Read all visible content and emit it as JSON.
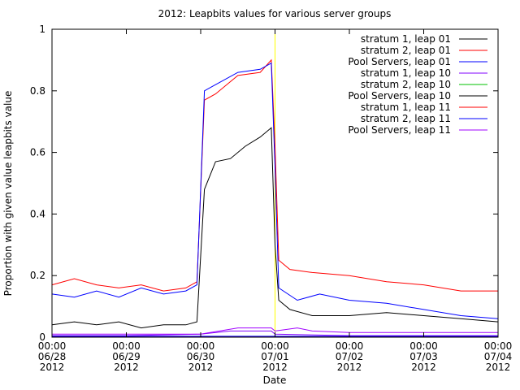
{
  "chart_data": {
    "type": "line",
    "title": "2012: Leapbits values for various server groups",
    "xlabel": "Date",
    "ylabel": "Proportion with given value leapbits value",
    "xlim": [
      0,
      6
    ],
    "ylim": [
      0,
      1
    ],
    "yticks": [
      {
        "value": 0,
        "label": "0"
      },
      {
        "value": 0.2,
        "label": "0.2"
      },
      {
        "value": 0.4,
        "label": "0.4"
      },
      {
        "value": 0.6,
        "label": "0.6"
      },
      {
        "value": 0.8,
        "label": "0.8"
      },
      {
        "value": 1,
        "label": "1"
      }
    ],
    "xticks": [
      {
        "value": 0,
        "time": "00:00",
        "day": "06/28",
        "year": "2012"
      },
      {
        "value": 1,
        "time": "00:00",
        "day": "06/29",
        "year": "2012"
      },
      {
        "value": 2,
        "time": "00:00",
        "day": "06/30",
        "year": "2012"
      },
      {
        "value": 3,
        "time": "00:00",
        "day": "07/01",
        "year": "2012"
      },
      {
        "value": 4,
        "time": "00:00",
        "day": "07/02",
        "year": "2012"
      },
      {
        "value": 5,
        "time": "00:00",
        "day": "07/03",
        "year": "2012"
      },
      {
        "value": 6,
        "time": "00:00",
        "day": "07/04",
        "year": "2012"
      }
    ],
    "marker_x": 3,
    "marker_color": "#ffff00",
    "legend_position": "top-right",
    "series": [
      {
        "name": "stratum 1, leap 01",
        "color": "#000000",
        "points": [
          [
            0,
            0.04
          ],
          [
            0.3,
            0.05
          ],
          [
            0.6,
            0.04
          ],
          [
            0.9,
            0.05
          ],
          [
            1.2,
            0.03
          ],
          [
            1.5,
            0.04
          ],
          [
            1.8,
            0.04
          ],
          [
            1.95,
            0.05
          ],
          [
            2.05,
            0.48
          ],
          [
            2.2,
            0.57
          ],
          [
            2.4,
            0.58
          ],
          [
            2.6,
            0.62
          ],
          [
            2.8,
            0.65
          ],
          [
            2.95,
            0.68
          ],
          [
            3.0,
            0.3
          ],
          [
            3.05,
            0.12
          ],
          [
            3.2,
            0.09
          ],
          [
            3.5,
            0.07
          ],
          [
            4.0,
            0.07
          ],
          [
            4.5,
            0.08
          ],
          [
            5.0,
            0.07
          ],
          [
            5.5,
            0.06
          ],
          [
            6.0,
            0.05
          ]
        ]
      },
      {
        "name": "stratum 2, leap 01",
        "color": "#ff0000",
        "points": [
          [
            0,
            0.17
          ],
          [
            0.3,
            0.19
          ],
          [
            0.6,
            0.17
          ],
          [
            0.9,
            0.16
          ],
          [
            1.2,
            0.17
          ],
          [
            1.5,
            0.15
          ],
          [
            1.8,
            0.16
          ],
          [
            1.95,
            0.18
          ],
          [
            2.05,
            0.77
          ],
          [
            2.2,
            0.79
          ],
          [
            2.5,
            0.85
          ],
          [
            2.8,
            0.86
          ],
          [
            2.95,
            0.9
          ],
          [
            3.0,
            0.62
          ],
          [
            3.05,
            0.25
          ],
          [
            3.2,
            0.22
          ],
          [
            3.5,
            0.21
          ],
          [
            4.0,
            0.2
          ],
          [
            4.5,
            0.18
          ],
          [
            5.0,
            0.17
          ],
          [
            5.5,
            0.15
          ],
          [
            6.0,
            0.15
          ]
        ]
      },
      {
        "name": "Pool Servers, leap 01",
        "color": "#0000ff",
        "points": [
          [
            0,
            0.14
          ],
          [
            0.3,
            0.13
          ],
          [
            0.6,
            0.15
          ],
          [
            0.9,
            0.13
          ],
          [
            1.2,
            0.16
          ],
          [
            1.5,
            0.14
          ],
          [
            1.8,
            0.15
          ],
          [
            1.95,
            0.17
          ],
          [
            2.05,
            0.8
          ],
          [
            2.2,
            0.82
          ],
          [
            2.5,
            0.86
          ],
          [
            2.8,
            0.87
          ],
          [
            2.95,
            0.89
          ],
          [
            3.0,
            0.55
          ],
          [
            3.05,
            0.16
          ],
          [
            3.3,
            0.12
          ],
          [
            3.6,
            0.14
          ],
          [
            4.0,
            0.12
          ],
          [
            4.5,
            0.11
          ],
          [
            5.0,
            0.09
          ],
          [
            5.5,
            0.07
          ],
          [
            6.0,
            0.06
          ]
        ]
      },
      {
        "name": "stratum 1, leap 10",
        "color": "#8000ff",
        "points": [
          [
            0,
            0.005
          ],
          [
            1,
            0.005
          ],
          [
            2,
            0.01
          ],
          [
            2.4,
            0.02
          ],
          [
            2.95,
            0.02
          ],
          [
            3.0,
            0.01
          ],
          [
            4,
            0.005
          ],
          [
            5,
            0.005
          ],
          [
            6,
            0.005
          ]
        ]
      },
      {
        "name": "stratum 2, leap 10",
        "color": "#00c000",
        "points": [
          [
            0,
            0.001
          ],
          [
            1,
            0.001
          ],
          [
            2,
            0.001
          ],
          [
            3,
            0.001
          ],
          [
            4,
            0.001
          ],
          [
            5,
            0.001
          ],
          [
            6,
            0.001
          ]
        ]
      },
      {
        "name": "Pool Servers, leap 10",
        "color": "#000000",
        "points": [
          [
            0,
            0.002
          ],
          [
            1,
            0.002
          ],
          [
            2,
            0.002
          ],
          [
            3,
            0.002
          ],
          [
            4,
            0.002
          ],
          [
            5,
            0.002
          ],
          [
            6,
            0.002
          ]
        ]
      },
      {
        "name": "stratum 1, leap 11",
        "color": "#ff0000",
        "points": [
          [
            0,
            0.001
          ],
          [
            1,
            0.001
          ],
          [
            2,
            0.001
          ],
          [
            3,
            0.001
          ],
          [
            4,
            0.001
          ],
          [
            5,
            0.001
          ],
          [
            6,
            0.001
          ]
        ]
      },
      {
        "name": "stratum 2, leap 11",
        "color": "#0000ff",
        "points": [
          [
            0,
            0.003
          ],
          [
            1,
            0.003
          ],
          [
            2,
            0.003
          ],
          [
            3,
            0.003
          ],
          [
            4,
            0.003
          ],
          [
            5,
            0.003
          ],
          [
            6,
            0.003
          ]
        ]
      },
      {
        "name": "Pool Servers, leap 11",
        "color": "#a000ff",
        "points": [
          [
            0,
            0.01
          ],
          [
            0.5,
            0.01
          ],
          [
            1,
            0.01
          ],
          [
            1.5,
            0.01
          ],
          [
            2,
            0.01
          ],
          [
            2.5,
            0.03
          ],
          [
            2.95,
            0.03
          ],
          [
            3.0,
            0.02
          ],
          [
            3.3,
            0.03
          ],
          [
            3.5,
            0.02
          ],
          [
            4,
            0.015
          ],
          [
            5,
            0.015
          ],
          [
            6,
            0.015
          ]
        ]
      }
    ]
  }
}
